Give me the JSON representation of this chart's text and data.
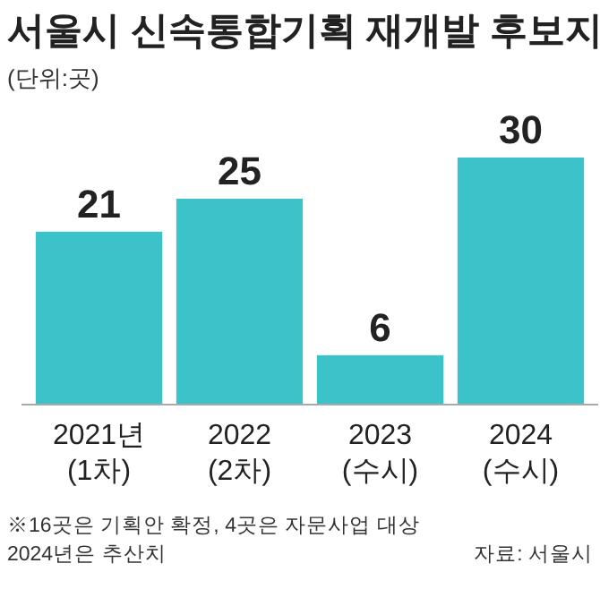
{
  "chart_data": {
    "type": "bar",
    "title": "서울시 신속통합기획 재개발 후보지",
    "subtitle": "(단위:곳)",
    "categories": [
      "2021년\n(1차)",
      "2022\n(2차)",
      "2023\n(수시)",
      "2024\n(수시)"
    ],
    "values": [
      21,
      25,
      6,
      30
    ],
    "color": "#3cc3c9",
    "data_labels": true,
    "annotations": [
      "※16곳은 기획안 확정, 4곳은 자문사업 대상\n2024년은 추산치",
      "자료: 서울시"
    ]
  }
}
